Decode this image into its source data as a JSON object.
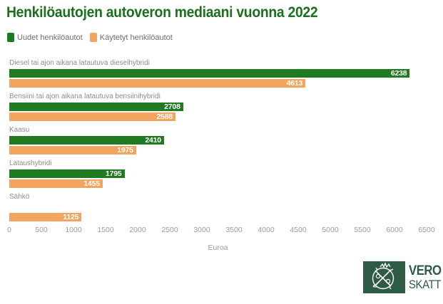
{
  "title": "Henkilöautojen autoveron mediaani vuonna 2022",
  "legend": [
    {
      "label": "Uudet henkilöautot",
      "color": "#1f7a21"
    },
    {
      "label": "Käytetyt henkilöautot",
      "color": "#f2a55f"
    }
  ],
  "chart_data": {
    "type": "bar",
    "orientation": "horizontal",
    "title": "Henkilöautojen autoveron mediaani vuonna 2022",
    "categories": [
      "Diesel tai ajon aikana latautuva dieselhybridi",
      "Bensiini tai ajon aikana latautuva bensiinihybridi",
      "Kaasu",
      "Lataushybridi",
      "Sähkö"
    ],
    "series": [
      {
        "name": "Uudet henkilöautot",
        "color": "#1f7a21",
        "values": [
          6238,
          2708,
          2410,
          1795,
          null
        ]
      },
      {
        "name": "Käytetyt henkilöautot",
        "color": "#f2a55f",
        "values": [
          4613,
          2588,
          1975,
          1455,
          1125
        ]
      }
    ],
    "xlabel": "Euroa",
    "ylabel": "",
    "xlim": [
      0,
      6500
    ],
    "ticks": [
      0,
      500,
      1000,
      1500,
      2000,
      2500,
      3000,
      3500,
      4000,
      4500,
      5000,
      5500,
      6000,
      6500
    ],
    "grid": false,
    "legend_position": "top-left",
    "value_labels": "inside-end-white"
  },
  "logo": {
    "line1": "VERO",
    "line2": "SKATT"
  },
  "colors": {
    "title_green": "#1a701d",
    "bar_new_green": "#1f7a21",
    "bar_used_orange": "#f2a55f",
    "logo_green": "#2d5b44",
    "category_label_gray": "#8d8d8d",
    "axis_gray": "#9c9c9c",
    "legend_text_gray": "#6e6e6e",
    "value_text": "#ffffff",
    "background": "#ffffff"
  }
}
